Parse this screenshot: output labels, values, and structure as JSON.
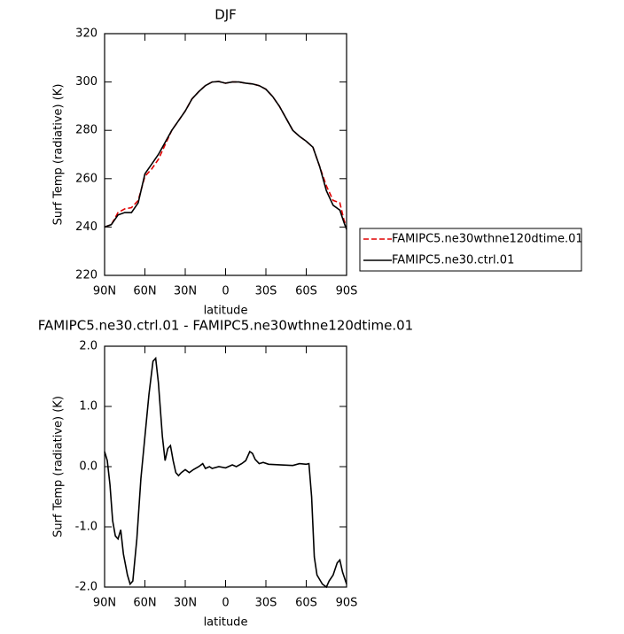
{
  "chart_data": [
    {
      "type": "line",
      "title": "DJF",
      "x_label": "latitude",
      "y_label": "Surf Temp (radiative) (K)",
      "x": [
        90,
        85,
        80,
        75,
        70,
        65,
        60,
        55,
        50,
        45,
        40,
        35,
        30,
        25,
        20,
        15,
        10,
        5,
        0,
        -5,
        -10,
        -15,
        -20,
        -25,
        -30,
        -35,
        -40,
        -45,
        -50,
        -55,
        -60,
        -65,
        -70,
        -75,
        -80,
        -85,
        -88,
        -90
      ],
      "series": [
        {
          "name": "FAMIPC5.ne30wthne120dtime.01",
          "color": "#e00000",
          "linestyle": "dashed",
          "values": [
            240,
            241,
            246,
            247.5,
            248,
            251,
            261,
            264,
            268,
            274,
            280,
            284,
            288,
            293,
            296,
            298.5,
            300,
            300.2,
            299.5,
            300,
            300,
            299.5,
            299.2,
            298.5,
            297,
            294,
            290,
            285,
            280,
            277.5,
            275.5,
            273,
            265,
            257,
            251,
            250,
            243,
            240
          ]
        },
        {
          "name": "FAMIPC5.ne30.ctrl.01",
          "color": "#000000",
          "linestyle": "solid",
          "values": [
            240,
            241,
            245,
            246,
            246,
            250,
            262,
            266,
            270,
            275,
            280,
            284,
            288,
            293,
            296,
            298.5,
            300,
            300.2,
            299.5,
            300,
            300,
            299.5,
            299.2,
            298.5,
            297,
            294,
            290,
            285,
            280,
            277.5,
            275.5,
            273,
            265,
            255,
            249,
            247,
            242,
            239
          ]
        }
      ],
      "xlim": [
        90,
        -90
      ],
      "xticks": [
        {
          "value": 90,
          "label": "90N"
        },
        {
          "value": 60,
          "label": "60N"
        },
        {
          "value": 30,
          "label": "30N"
        },
        0,
        {
          "value": -30,
          "label": "30S"
        },
        {
          "value": -60,
          "label": "60S"
        },
        {
          "value": -90,
          "label": "90S"
        }
      ],
      "ylim": [
        220,
        320
      ],
      "yticks": [
        220,
        240,
        260,
        280,
        300,
        320
      ]
    },
    {
      "type": "line",
      "title": "FAMIPC5.ne30.ctrl.01 - FAMIPC5.ne30wthne120dtime.01",
      "x_label": "latitude",
      "y_label": "Surf Temp (radiative) (K)",
      "x": [
        90,
        88,
        86,
        84,
        82,
        80,
        78,
        76,
        73,
        71,
        69,
        66,
        63,
        60,
        57,
        54,
        52,
        50,
        47,
        45,
        43,
        41,
        39,
        37,
        35,
        33,
        30,
        27,
        24,
        20,
        17,
        15,
        12,
        10,
        5,
        0,
        -5,
        -8,
        -12,
        -15,
        -18,
        -20,
        -22,
        -25,
        -28,
        -32,
        -40,
        -50,
        -55,
        -60,
        -62,
        -64,
        -66,
        -68,
        -72,
        -75,
        -77,
        -80,
        -83,
        -85,
        -87,
        -90
      ],
      "color": "#000000",
      "values": [
        0.25,
        0.1,
        -0.3,
        -0.9,
        -1.15,
        -1.2,
        -1.05,
        -1.45,
        -1.8,
        -1.95,
        -1.9,
        -1.2,
        -0.2,
        0.5,
        1.2,
        1.75,
        1.8,
        1.4,
        0.5,
        0.1,
        0.3,
        0.35,
        0.1,
        -0.1,
        -0.15,
        -0.1,
        -0.05,
        -0.1,
        -0.05,
        0.0,
        0.05,
        -0.03,
        0.0,
        -0.03,
        0.0,
        -0.02,
        0.03,
        0.0,
        0.05,
        0.1,
        0.25,
        0.22,
        0.12,
        0.05,
        0.07,
        0.04,
        0.03,
        0.02,
        0.05,
        0.04,
        0.05,
        -0.5,
        -1.5,
        -1.8,
        -1.95,
        -2.0,
        -1.9,
        -1.8,
        -1.6,
        -1.55,
        -1.75,
        -1.95
      ],
      "xlim": [
        90,
        -90
      ],
      "xticks": [
        {
          "value": 90,
          "label": "90N"
        },
        {
          "value": 60,
          "label": "60N"
        },
        {
          "value": 30,
          "label": "30N"
        },
        0,
        {
          "value": -30,
          "label": "30S"
        },
        {
          "value": -60,
          "label": "60S"
        },
        {
          "value": -90,
          "label": "90S"
        }
      ],
      "ylim": [
        -2,
        2
      ],
      "yticks": [
        {
          "value": -2,
          "label": "-2.0"
        },
        {
          "value": -1,
          "label": "-1.0"
        },
        {
          "value": 0,
          "label": "0.0"
        },
        {
          "value": 1,
          "label": "1.0"
        },
        {
          "value": 2,
          "label": "2.0"
        }
      ]
    }
  ]
}
